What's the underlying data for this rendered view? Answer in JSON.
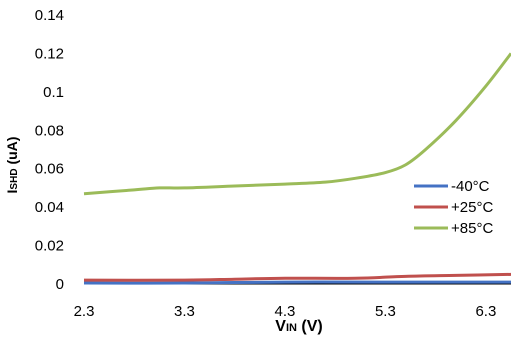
{
  "chart_data": {
    "type": "line",
    "title": "",
    "xlabel": {
      "main": "V",
      "sub": "IN",
      "unit": " (V)"
    },
    "ylabel": {
      "main": "I",
      "sub": "SHD",
      "unit": " (uA)"
    },
    "x_ticks": [
      "2.3",
      "3.3",
      "4.3",
      "5.3",
      "6.3"
    ],
    "y_ticks": [
      "0",
      "0.02",
      "0.04",
      "0.06",
      "0.08",
      "0.1",
      "0.12",
      "0.14"
    ],
    "xlim": [
      2.3,
      6.55
    ],
    "ylim": [
      0,
      0.14
    ],
    "grid": false,
    "legend_position": "right",
    "series": [
      {
        "name": "-40°C",
        "color": "#4472C4",
        "points": [
          [
            2.3,
            0.0005
          ],
          [
            3.3,
            0.0005
          ],
          [
            4.3,
            0.001
          ],
          [
            5.3,
            0.001
          ],
          [
            6.55,
            0.001
          ]
        ]
      },
      {
        "name": "+25°C",
        "color": "#C0504D",
        "points": [
          [
            2.3,
            0.002
          ],
          [
            3.3,
            0.002
          ],
          [
            3.8,
            0.0025
          ],
          [
            4.3,
            0.003
          ],
          [
            5.0,
            0.003
          ],
          [
            5.5,
            0.004
          ],
          [
            6.0,
            0.0045
          ],
          [
            6.55,
            0.005
          ]
        ]
      },
      {
        "name": "+85°C",
        "color": "#9BBB59",
        "points": [
          [
            2.3,
            0.047
          ],
          [
            2.8,
            0.049
          ],
          [
            3.05,
            0.05
          ],
          [
            3.3,
            0.05
          ],
          [
            3.8,
            0.051
          ],
          [
            4.3,
            0.052
          ],
          [
            4.7,
            0.053
          ],
          [
            5.0,
            0.055
          ],
          [
            5.3,
            0.058
          ],
          [
            5.5,
            0.062
          ],
          [
            5.7,
            0.07
          ],
          [
            6.0,
            0.085
          ],
          [
            6.3,
            0.103
          ],
          [
            6.55,
            0.12
          ]
        ]
      }
    ]
  }
}
